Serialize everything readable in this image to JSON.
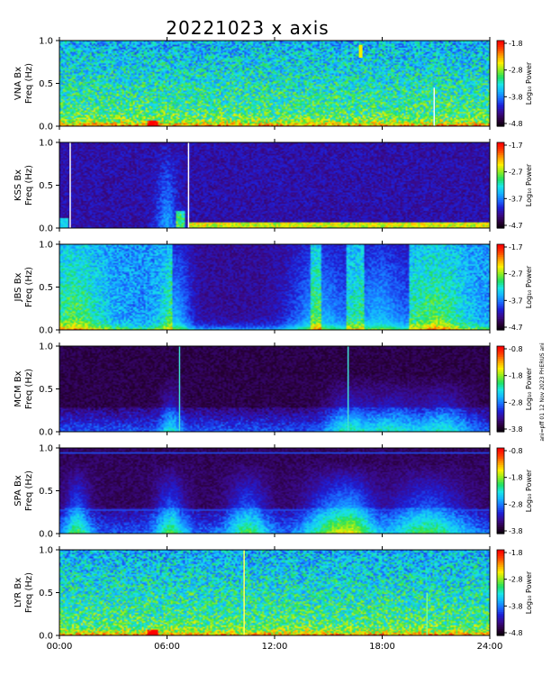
{
  "chart_data": {
    "type": "heatmap",
    "title": "20221023 x axis",
    "stamp": "ani=pff 01 12 Nov 2023 PHERUS ani",
    "xlabel": "",
    "x_ticks": [
      "00:00",
      "06:00",
      "12:00",
      "18:00",
      "24:00"
    ],
    "xlim_hours": [
      0,
      24
    ],
    "panels": [
      {
        "station": "VNA Bx",
        "ylabel": "Freq (Hz)",
        "ylim": [
          0,
          1.0
        ],
        "y_ticks": [
          "0.0",
          "0.5",
          "1.0"
        ],
        "colorbar_label": "Log₁₀ Power",
        "colorbar_ticks": [
          "-1.8",
          "-2.8",
          "-3.8",
          "-4.8"
        ],
        "log_power_range": [
          -4.8,
          -1.8
        ],
        "background": "broadband",
        "bursts": [
          [
            16.7,
            16.9,
            0.8,
            0.95,
            "yellow"
          ]
        ],
        "lines": [
          [
            20.9,
            "#e8f6ff",
            0.0,
            0.45
          ]
        ]
      },
      {
        "station": "KSS Bx",
        "ylabel": "Freq (Hz)",
        "ylim": [
          0,
          1.0
        ],
        "y_ticks": [
          "0.0",
          "0.5",
          "1.0"
        ],
        "colorbar_label": "Log₁₀ Power",
        "colorbar_ticks": [
          "-1.7",
          "-2.7",
          "-3.7",
          "-4.7"
        ],
        "log_power_range": [
          -4.7,
          -1.7
        ],
        "background": "quiet",
        "bursts": [],
        "lines": [
          [
            0.6,
            "#ffffff",
            0.0,
            1.0
          ],
          [
            7.2,
            "#ffffff",
            0.0,
            1.0
          ]
        ]
      },
      {
        "station": "JBS Bx",
        "ylabel": "Freq (Hz)",
        "ylim": [
          0,
          1.0
        ],
        "y_ticks": [
          "0.0",
          "0.5",
          "1.0"
        ],
        "colorbar_label": "Log₁₀ Power",
        "colorbar_ticks": [
          "-1.7",
          "-2.7",
          "-3.7",
          "-4.7"
        ],
        "log_power_range": [
          -4.7,
          -1.7
        ],
        "background": "mixed",
        "bursts": [],
        "lines": []
      },
      {
        "station": "MCM Bx",
        "ylabel": "Freq (Hz)",
        "ylim": [
          0,
          1.0
        ],
        "y_ticks": [
          "0.0",
          "0.5",
          "1.0"
        ],
        "colorbar_label": "Log₁₀ Power",
        "colorbar_ticks": [
          "-0.8",
          "-1.8",
          "-2.8",
          "-3.8"
        ],
        "log_power_range": [
          -3.8,
          -0.8
        ],
        "background": "dark",
        "bursts": [],
        "lines": [
          [
            6.7,
            "#40e0d0",
            0.0,
            1.0
          ],
          [
            16.1,
            "#40e0d0",
            0.0,
            1.0
          ]
        ]
      },
      {
        "station": "SPA Bx",
        "ylabel": "Freq (Hz)",
        "ylim": [
          0,
          1.0
        ],
        "y_ticks": [
          "0.0",
          "0.5",
          "1.0"
        ],
        "colorbar_label": "Log₁₀ Power",
        "colorbar_ticks": [
          "-0.8",
          "-1.8",
          "-2.8",
          "-3.8"
        ],
        "log_power_range": [
          -3.8,
          -0.8
        ],
        "background": "dark-banded",
        "bursts": [],
        "lines": []
      },
      {
        "station": "LYR Bx",
        "ylabel": "Freq (Hz)",
        "ylim": [
          0,
          1.0
        ],
        "y_ticks": [
          "0.0",
          "0.5",
          "1.0"
        ],
        "colorbar_label": "Log₁₀ Power",
        "colorbar_ticks": [
          "-1.8",
          "-2.8",
          "-3.8",
          "-4.8"
        ],
        "log_power_range": [
          -4.8,
          -1.8
        ],
        "background": "broadband",
        "bursts": [],
        "lines": [
          [
            10.3,
            "#ffff60",
            0.0,
            1.0
          ],
          [
            20.5,
            "#80ff80",
            0.0,
            0.5
          ]
        ]
      }
    ],
    "colormap": [
      "#000000",
      "#2a003a",
      "#3a0a8a",
      "#1e1ed6",
      "#1a6cff",
      "#14b4ff",
      "#19e6e6",
      "#20e060",
      "#90ee20",
      "#fff000",
      "#ffa000",
      "#ff4000",
      "#ff0000"
    ]
  }
}
